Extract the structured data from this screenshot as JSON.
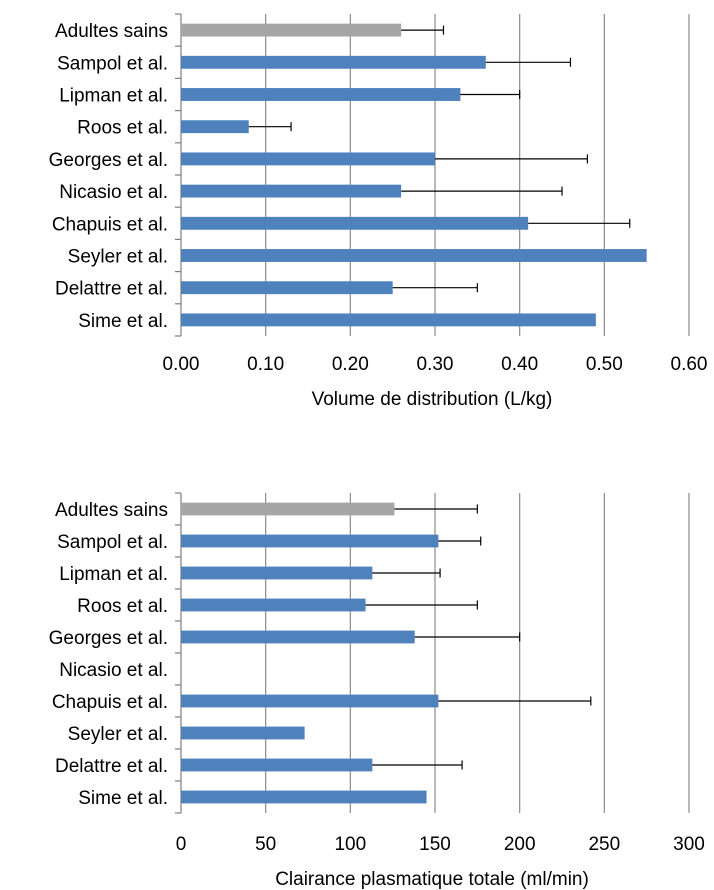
{
  "chart_data": [
    {
      "type": "bar",
      "orientation": "horizontal",
      "xlabel": "Volume de distribution (L/kg)",
      "xlim": [
        0,
        0.6
      ],
      "ticks": [
        "0.00",
        "0.10",
        "0.20",
        "0.30",
        "0.40",
        "0.50",
        "0.60"
      ],
      "grid": true,
      "categories": [
        "Adultes sains",
        "Sampol et al.",
        "Lipman et al.",
        "Roos et al.",
        "Georges et al.",
        "Nicasio et al.",
        "Chapuis et al.",
        "Seyler et al.",
        "Delattre et al.",
        "Sime et al."
      ],
      "values": [
        0.26,
        0.36,
        0.33,
        0.08,
        0.3,
        0.26,
        0.41,
        0.55,
        0.25,
        0.49
      ],
      "error_upper": [
        0.31,
        0.46,
        0.4,
        0.13,
        0.48,
        0.45,
        0.53,
        null,
        0.35,
        null
      ],
      "bar_colors": [
        "#a6a6a6",
        "#4f81bd",
        "#4f81bd",
        "#4f81bd",
        "#4f81bd",
        "#4f81bd",
        "#4f81bd",
        "#4f81bd",
        "#4f81bd",
        "#4f81bd"
      ]
    },
    {
      "type": "bar",
      "orientation": "horizontal",
      "xlabel": "Clairance plasmatique totale (ml/min)",
      "xlim": [
        0,
        300
      ],
      "ticks": [
        "0",
        "50",
        "100",
        "150",
        "200",
        "250",
        "300"
      ],
      "grid": true,
      "categories": [
        "Adultes sains",
        "Sampol et al.",
        "Lipman et al.",
        "Roos et al.",
        "Georges et al.",
        "Nicasio et al.",
        "Chapuis et al.",
        "Seyler et al.",
        "Delattre et al.",
        "Sime et al."
      ],
      "values": [
        126,
        152,
        113,
        109,
        138,
        null,
        152,
        73,
        113,
        145
      ],
      "error_upper": [
        175,
        177,
        153,
        175,
        200,
        null,
        242,
        null,
        166,
        null
      ],
      "bar_colors": [
        "#a6a6a6",
        "#4f81bd",
        "#4f81bd",
        "#4f81bd",
        "#4f81bd",
        "#4f81bd",
        "#4f81bd",
        "#4f81bd",
        "#4f81bd",
        "#4f81bd"
      ]
    }
  ]
}
